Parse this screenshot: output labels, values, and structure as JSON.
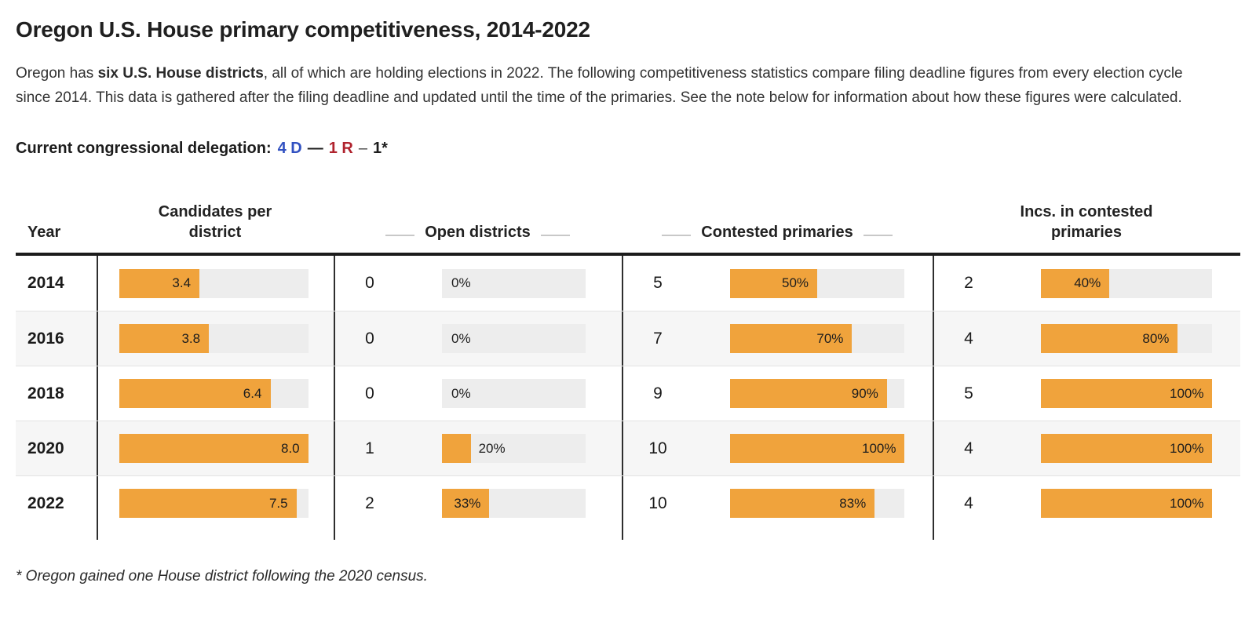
{
  "header": {
    "title": "Oregon U.S. House primary competitiveness, 2014-2022"
  },
  "intro": {
    "part1": "Oregon has ",
    "bold": "six U.S. House districts",
    "part2": ", all of which are holding elections in 2022. The following competitiveness statistics compare filing deadline figures from every election cycle since 2014. This data is gathered after the filing deadline and updated until the time of the primaries. See the note below for information about how these figures were calculated."
  },
  "delegation": {
    "label": "Current congressional delegation:",
    "dem": "4 D",
    "separator1": "—",
    "rep": "1 R",
    "separator2": "–",
    "other": "1*"
  },
  "footnote": "* Oregon gained one House district following the 2020 census.",
  "colors": {
    "bar_orange": "#F0A33C",
    "track_gray": "#EDEDED",
    "dem_blue": "#3151C1",
    "rep_red": "#B0232E",
    "row_alt": "#F6F6F6",
    "rule_dark": "#1C1C1C"
  },
  "chart_data": {
    "type": "table",
    "title": "Oregon U.S. House primary competitiveness, 2014-2022",
    "columns": [
      "Year",
      "Candidates per district",
      "Open districts",
      "Contested primaries",
      "Incs. in contested primaries"
    ],
    "bar_axes": {
      "candidates_per_district_max": 8.0,
      "percent_max": 100
    },
    "rows": [
      {
        "year": "2014",
        "candidates_per_district": {
          "label": "3.4",
          "pct": 42.5
        },
        "open_districts": {
          "count": "0",
          "label": "0%",
          "pct": 0
        },
        "contested_primaries": {
          "count": "5",
          "label": "50%",
          "pct": 50
        },
        "incumbents_in_contested": {
          "count": "2",
          "label": "40%",
          "pct": 40
        }
      },
      {
        "year": "2016",
        "candidates_per_district": {
          "label": "3.8",
          "pct": 47.5
        },
        "open_districts": {
          "count": "0",
          "label": "0%",
          "pct": 0
        },
        "contested_primaries": {
          "count": "7",
          "label": "70%",
          "pct": 70
        },
        "incumbents_in_contested": {
          "count": "4",
          "label": "80%",
          "pct": 80
        }
      },
      {
        "year": "2018",
        "candidates_per_district": {
          "label": "6.4",
          "pct": 80
        },
        "open_districts": {
          "count": "0",
          "label": "0%",
          "pct": 0
        },
        "contested_primaries": {
          "count": "9",
          "label": "90%",
          "pct": 90
        },
        "incumbents_in_contested": {
          "count": "5",
          "label": "100%",
          "pct": 100
        }
      },
      {
        "year": "2020",
        "candidates_per_district": {
          "label": "8.0",
          "pct": 100
        },
        "open_districts": {
          "count": "1",
          "label": "20%",
          "pct": 20
        },
        "contested_primaries": {
          "count": "10",
          "label": "100%",
          "pct": 100
        },
        "incumbents_in_contested": {
          "count": "4",
          "label": "100%",
          "pct": 100
        }
      },
      {
        "year": "2022",
        "candidates_per_district": {
          "label": "7.5",
          "pct": 93.75
        },
        "open_districts": {
          "count": "2",
          "label": "33%",
          "pct": 33
        },
        "contested_primaries": {
          "count": "10",
          "label": "83%",
          "pct": 83
        },
        "incumbents_in_contested": {
          "count": "4",
          "label": "100%",
          "pct": 100
        }
      }
    ]
  }
}
